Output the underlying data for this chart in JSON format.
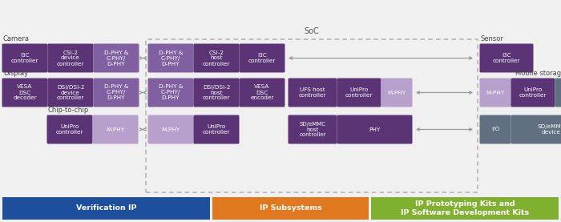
{
  "bg_color": "#f0f0f0",
  "dark_purple": "#5b3476",
  "mid_purple": "#8060a0",
  "light_purple": "#b8a0cc",
  "dark_gray": "#607080",
  "blue_bar": "#1e4f9c",
  "orange_bar": "#e07820",
  "green_bar": "#80b030",
  "bar_labels": [
    "Verification IP",
    "IP Subsystems",
    "IP Prototyping Kits and\nIP Software Development Kits"
  ],
  "bar_colors": [
    "#1e4f9c",
    "#e07820",
    "#80b030"
  ],
  "soc_label": "SoC",
  "text_color": "#444444"
}
